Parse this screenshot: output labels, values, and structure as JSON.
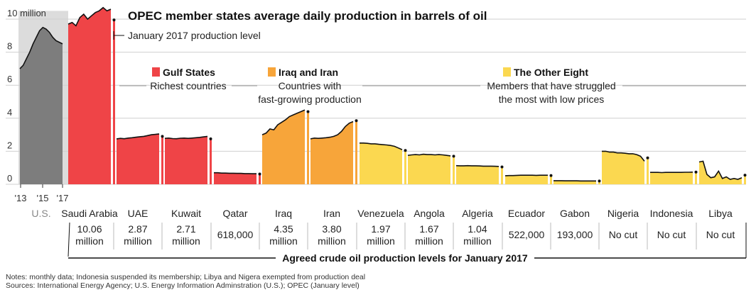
{
  "chart_data": {
    "type": "area",
    "title": "OPEC member states average daily production in barrels of oil",
    "ylim": [
      0,
      10.5
    ],
    "yticks": [
      "10 million",
      "8",
      "6",
      "4",
      "2",
      "0"
    ],
    "us_xticks": [
      "'13",
      "'15",
      "'17"
    ],
    "callout": "January 2017 production level",
    "groups": [
      {
        "name": "Gulf States",
        "desc": "Richest countries",
        "color": "#ef4447"
      },
      {
        "name": "Iraq and Iran",
        "desc_lines": [
          "Countries with",
          "fast-growing production"
        ],
        "color": "#f7a53a"
      },
      {
        "name": "The Other Eight",
        "desc_lines": [
          "Members that have struggled",
          "the most with low prices"
        ],
        "color": "#fbd850"
      }
    ],
    "series": [
      {
        "name": "U.S.",
        "group": "us",
        "color": "#7d7d7d",
        "values": [
          7.0,
          7.2,
          7.6,
          8.0,
          8.5,
          8.9,
          9.3,
          9.5,
          9.4,
          9.2,
          8.9,
          8.7,
          8.6,
          8.5
        ],
        "jan2017": null,
        "target_lines": []
      },
      {
        "name": "Saudi Arabia",
        "group": 0,
        "values": [
          9.7,
          9.8,
          9.6,
          10.1,
          10.3,
          10.0,
          10.2,
          10.4,
          10.5,
          10.7,
          10.5,
          10.6
        ],
        "jan2017": 9.95,
        "target_lines": [
          "10.06",
          "million"
        ]
      },
      {
        "name": "UAE",
        "group": 0,
        "values": [
          2.75,
          2.78,
          2.76,
          2.8,
          2.82,
          2.85,
          2.88,
          2.9,
          2.95,
          3.0,
          3.02,
          3.05
        ],
        "jan2017": 2.9,
        "target_lines": [
          "2.87",
          "million"
        ]
      },
      {
        "name": "Kuwait",
        "group": 0,
        "values": [
          2.78,
          2.8,
          2.77,
          2.76,
          2.79,
          2.8,
          2.78,
          2.8,
          2.82,
          2.84,
          2.87,
          2.9
        ],
        "jan2017": 2.75,
        "target_lines": [
          "2.71",
          "million"
        ]
      },
      {
        "name": "Qatar",
        "group": 0,
        "values": [
          0.7,
          0.7,
          0.68,
          0.68,
          0.67,
          0.67,
          0.66,
          0.66,
          0.65,
          0.65,
          0.64,
          0.64
        ],
        "jan2017": 0.62,
        "target_lines": [
          "618,000"
        ]
      },
      {
        "name": "Iraq",
        "group": 1,
        "values": [
          3.0,
          3.1,
          3.35,
          3.3,
          3.6,
          3.75,
          3.9,
          4.1,
          4.2,
          4.3,
          4.4,
          4.5
        ],
        "jan2017": 4.4,
        "target_lines": [
          "4.35",
          "million"
        ]
      },
      {
        "name": "Iran",
        "group": 1,
        "values": [
          2.75,
          2.8,
          2.78,
          2.8,
          2.82,
          2.85,
          2.9,
          3.0,
          3.2,
          3.5,
          3.7,
          3.8
        ],
        "jan2017": 3.85,
        "target_lines": [
          "3.80",
          "million"
        ]
      },
      {
        "name": "Venezuela",
        "group": 2,
        "values": [
          2.5,
          2.5,
          2.48,
          2.45,
          2.45,
          2.42,
          2.4,
          2.38,
          2.35,
          2.3,
          2.2,
          2.1
        ],
        "jan2017": 2.05,
        "target_lines": [
          "1.97",
          "million"
        ]
      },
      {
        "name": "Angola",
        "group": 2,
        "values": [
          1.75,
          1.78,
          1.8,
          1.78,
          1.82,
          1.8,
          1.8,
          1.78,
          1.8,
          1.78,
          1.75,
          1.72
        ],
        "jan2017": 1.7,
        "target_lines": [
          "1.67",
          "million"
        ]
      },
      {
        "name": "Algeria",
        "group": 2,
        "values": [
          1.13,
          1.12,
          1.12,
          1.13,
          1.12,
          1.12,
          1.11,
          1.1,
          1.1,
          1.1,
          1.09,
          1.08
        ],
        "jan2017": 1.05,
        "target_lines": [
          "1.04",
          "million"
        ]
      },
      {
        "name": "Ecuador",
        "group": 2,
        "values": [
          0.52,
          0.53,
          0.53,
          0.54,
          0.55,
          0.55,
          0.55,
          0.55,
          0.54,
          0.55,
          0.55,
          0.55
        ],
        "jan2017": 0.53,
        "target_lines": [
          "522,000"
        ]
      },
      {
        "name": "Gabon",
        "group": 2,
        "values": [
          0.22,
          0.22,
          0.22,
          0.21,
          0.21,
          0.21,
          0.21,
          0.2,
          0.2,
          0.2,
          0.2,
          0.2
        ],
        "jan2017": 0.2,
        "target_lines": [
          "193,000"
        ]
      },
      {
        "name": "Nigeria",
        "group": 2,
        "values": [
          2.0,
          2.0,
          1.95,
          1.95,
          1.9,
          1.9,
          1.88,
          1.85,
          1.85,
          1.8,
          1.7,
          1.4
        ],
        "jan2017": 1.6,
        "target_lines": [
          "No cut"
        ]
      },
      {
        "name": "Indonesia",
        "group": 2,
        "values": [
          0.72,
          0.72,
          0.72,
          0.71,
          0.72,
          0.72,
          0.72,
          0.72,
          0.72,
          0.73,
          0.73,
          0.74
        ],
        "jan2017": 0.74,
        "target_lines": [
          "No cut"
        ]
      },
      {
        "name": "Libya",
        "group": 2,
        "values": [
          1.35,
          1.4,
          0.6,
          0.4,
          0.45,
          0.8,
          0.35,
          0.45,
          0.3,
          0.35,
          0.3,
          0.4
        ],
        "jan2017": 0.55,
        "target_lines": [
          "No cut"
        ]
      }
    ],
    "agreed_label": "Agreed crude oil production levels for January 2017"
  },
  "notes": {
    "line1": "Notes: monthly data; Indonesia suspended its membership; Libya and Nigera exempted from production deal",
    "line2": "Sources: International Energy Agency; U.S. Energy Information Adminstration (U.S.); OPEC (January level)"
  }
}
